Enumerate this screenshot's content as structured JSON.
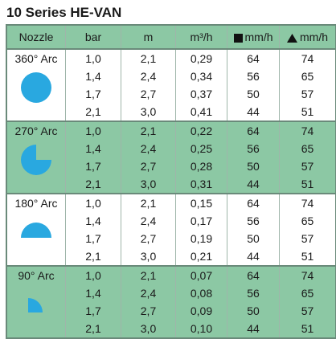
{
  "title": "10 Series HE-VAN",
  "table": {
    "header": [
      "Nozzle",
      "bar",
      "m",
      "m³/h",
      "mm/h",
      "mm/h"
    ],
    "groups": [
      {
        "nozzle": "360° Arc",
        "rows": [
          [
            "1,0",
            "2,1",
            "0,29",
            "64",
            "74"
          ],
          [
            "1,4",
            "2,4",
            "0,34",
            "56",
            "65"
          ],
          [
            "1,7",
            "2,7",
            "0,37",
            "50",
            "57"
          ],
          [
            "2,1",
            "3,0",
            "0,41",
            "44",
            "51"
          ]
        ]
      },
      {
        "nozzle": "270° Arc",
        "rows": [
          [
            "1,0",
            "2,1",
            "0,22",
            "64",
            "74"
          ],
          [
            "1,4",
            "2,4",
            "0,25",
            "56",
            "65"
          ],
          [
            "1,7",
            "2,7",
            "0,28",
            "50",
            "57"
          ],
          [
            "2,1",
            "3,0",
            "0,31",
            "44",
            "51"
          ]
        ]
      },
      {
        "nozzle": "180° Arc",
        "rows": [
          [
            "1,0",
            "2,1",
            "0,15",
            "64",
            "74"
          ],
          [
            "1,4",
            "2,4",
            "0,17",
            "56",
            "65"
          ],
          [
            "1,7",
            "2,7",
            "0,19",
            "50",
            "57"
          ],
          [
            "2,1",
            "3,0",
            "0,21",
            "44",
            "51"
          ]
        ]
      },
      {
        "nozzle": "90° Arc",
        "rows": [
          [
            "1,0",
            "2,1",
            "0,07",
            "64",
            "74"
          ],
          [
            "1,4",
            "2,4",
            "0,08",
            "56",
            "65"
          ],
          [
            "1,7",
            "2,7",
            "0,09",
            "50",
            "57"
          ],
          [
            "2,1",
            "3,0",
            "0,10",
            "44",
            "51"
          ]
        ]
      }
    ]
  }
}
